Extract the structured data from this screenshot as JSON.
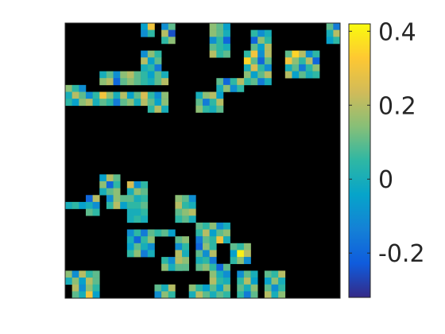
{
  "chart_data": {
    "type": "heatmap",
    "title": "",
    "xlabel": "",
    "ylabel": "",
    "background_value_color": "#000000",
    "colormap": "parula",
    "colorbar": {
      "clim": [
        -0.32,
        0.42
      ],
      "ticks": [
        -0.2,
        0,
        0.2,
        0.4
      ],
      "tick_labels": [
        "-0.2",
        "0",
        "0.2",
        "0.4"
      ]
    },
    "grid_size": [
      40,
      40
    ],
    "blocks": [
      {
        "row": 0,
        "col": 11,
        "h": 2,
        "w": 2,
        "values": [
          -0.05,
          0.3,
          -0.1,
          0.05
        ]
      },
      {
        "row": 0,
        "col": 14,
        "h": 3,
        "w": 2,
        "values": [
          -0.1,
          0.1,
          0.2,
          -0.25,
          0.05,
          0.15
        ]
      },
      {
        "row": 0,
        "col": 21,
        "h": 5,
        "w": 3,
        "values": [
          0.15,
          0.1,
          -0.05,
          0.15,
          0.1,
          0.0,
          -0.1,
          0.05,
          -0.2,
          0.1,
          0.05,
          0.0,
          0.2,
          0.05,
          0.1
        ]
      },
      {
        "row": 1,
        "col": 27,
        "h": 3,
        "w": 3,
        "values": [
          0.05,
          -0.1,
          0.0,
          -0.2,
          0.15,
          0.05,
          0.1,
          -0.05,
          0.2
        ]
      },
      {
        "row": 0,
        "col": 38,
        "h": 3,
        "w": 2,
        "values": [
          0.1,
          -0.15,
          0.0,
          0.2,
          -0.05,
          0.05
        ]
      },
      {
        "row": 4,
        "col": 11,
        "h": 3,
        "w": 3,
        "values": [
          -0.1,
          0.15,
          0.05,
          0.2,
          -0.05,
          0.1,
          0.0,
          0.05,
          -0.15
        ]
      },
      {
        "row": 7,
        "col": 5,
        "h": 2,
        "w": 10,
        "values": [
          0.0,
          0.1,
          -0.1,
          0.15,
          0.2,
          0.1,
          0.05,
          -0.05,
          0.1,
          0.0,
          0.15,
          0.2,
          -0.2,
          0.1,
          0.15,
          0.1,
          0.05,
          0.0,
          0.1,
          0.2
        ]
      },
      {
        "row": 4,
        "col": 26,
        "h": 5,
        "w": 4,
        "values": [
          0.05,
          0.3,
          -0.1,
          0.2,
          0.35,
          0.1,
          -0.2,
          0.1,
          0.0,
          0.25,
          0.05,
          -0.1,
          0.15,
          -0.05,
          0.1,
          0.2,
          0.05,
          0.1,
          -0.15,
          0.0
        ]
      },
      {
        "row": 4,
        "col": 32,
        "h": 4,
        "w": 5,
        "values": [
          0.1,
          0.35,
          0.2,
          -0.1,
          0.05,
          0.3,
          0.15,
          0.05,
          0.2,
          -0.2,
          0.0,
          0.1,
          -0.15,
          0.05,
          0.15,
          0.2,
          -0.05,
          0.1,
          0.0,
          0.05
        ]
      },
      {
        "row": 8,
        "col": 22,
        "h": 2,
        "w": 4,
        "values": [
          0.1,
          -0.2,
          0.05,
          0.2,
          0.0,
          0.15,
          -0.1,
          0.05
        ]
      },
      {
        "row": 9,
        "col": 0,
        "h": 3,
        "w": 3,
        "values": [
          0.15,
          0.05,
          -0.1,
          0.0,
          0.2,
          0.1,
          0.05,
          -0.05,
          0.15
        ]
      },
      {
        "row": 10,
        "col": 3,
        "h": 2,
        "w": 12,
        "values": [
          -0.1,
          0.05,
          0.3,
          0.15,
          0.0,
          0.2,
          -0.05,
          0.1,
          0.25,
          0.05,
          -0.1,
          0.15,
          0.2,
          0.0,
          0.1,
          0.05,
          -0.15,
          0.1,
          0.15,
          0.0,
          0.2,
          0.05,
          0.1,
          -0.05
        ]
      },
      {
        "row": 11,
        "col": 12,
        "h": 2,
        "w": 3,
        "values": [
          0.1,
          -0.05,
          0.15,
          0.05,
          0.2,
          0.0
        ]
      },
      {
        "row": 10,
        "col": 19,
        "h": 3,
        "w": 4,
        "values": [
          0.0,
          0.15,
          0.2,
          -0.05,
          0.1,
          -0.15,
          0.05,
          0.2,
          0.15,
          0.05,
          0.0,
          0.1
        ]
      },
      {
        "row": 22,
        "col": 5,
        "h": 3,
        "w": 3,
        "values": [
          -0.05,
          0.2,
          0.1,
          0.15,
          -0.2,
          0.05,
          0.0,
          0.1,
          0.15
        ]
      },
      {
        "row": 23,
        "col": 9,
        "h": 2,
        "w": 3,
        "values": [
          0.25,
          -0.1,
          0.05,
          0.0,
          0.15,
          0.1
        ]
      },
      {
        "row": 26,
        "col": 0,
        "h": 1,
        "w": 5,
        "values": [
          0.0,
          0.05,
          -0.05,
          0.1,
          0.05
        ]
      },
      {
        "row": 25,
        "col": 3,
        "h": 3,
        "w": 2,
        "values": [
          -0.2,
          0.2,
          0.0,
          -0.1,
          0.1,
          0.05
        ]
      },
      {
        "row": 25,
        "col": 6,
        "h": 2,
        "w": 3,
        "values": [
          -0.1,
          0.15,
          0.1,
          0.05,
          0.2,
          -0.05
        ]
      },
      {
        "row": 25,
        "col": 9,
        "h": 4,
        "w": 3,
        "values": [
          0.1,
          0.0,
          0.05,
          0.05,
          0.05,
          0.1,
          0.0,
          0.0,
          0.05,
          0.0,
          0.05,
          0.0
        ]
      },
      {
        "row": 25,
        "col": 16,
        "h": 4,
        "w": 3,
        "values": [
          0.15,
          0.1,
          -0.1,
          0.2,
          0.05,
          0.0,
          0.1,
          0.15,
          0.2,
          0.05,
          0.1,
          0.0
        ]
      },
      {
        "row": 30,
        "col": 9,
        "h": 4,
        "w": 4,
        "values": [
          -0.1,
          0.05,
          -0.15,
          0.1,
          0.0,
          -0.2,
          0.05,
          0.15,
          -0.05,
          0.1,
          0.0,
          -0.1,
          0.05,
          0.15,
          -0.15,
          0.0
        ]
      },
      {
        "row": 30,
        "col": 13,
        "h": 1,
        "w": 3,
        "values": [
          0.05,
          0.1,
          -0.05
        ]
      },
      {
        "row": 29,
        "col": 19,
        "h": 3,
        "w": 5,
        "values": [
          0.1,
          0.05,
          0.15,
          -0.1,
          0.0,
          0.05,
          0.2,
          -0.05,
          0.1,
          0.15,
          -0.15,
          0.1,
          0.05,
          0.3,
          0.0
        ]
      },
      {
        "row": 31,
        "col": 16,
        "h": 5,
        "w": 2,
        "values": [
          0.1,
          0.15,
          -0.1,
          0.05,
          0.2,
          0.0,
          0.05,
          0.15,
          -0.05,
          0.1
        ]
      },
      {
        "row": 32,
        "col": 19,
        "h": 4,
        "w": 3,
        "values": [
          -0.2,
          0.15,
          0.05,
          0.1,
          -0.1,
          0.2,
          0.0,
          0.05,
          -0.15,
          0.1,
          0.15,
          0.0
        ]
      },
      {
        "row": 32,
        "col": 24,
        "h": 3,
        "w": 3,
        "values": [
          0.1,
          0.05,
          0.15,
          -0.05,
          0.4,
          0.2,
          0.05,
          0.15,
          -0.1
        ]
      },
      {
        "row": 34,
        "col": 14,
        "h": 2,
        "w": 3,
        "values": [
          0.05,
          -0.1,
          0.2,
          0.15,
          0.0,
          0.1
        ]
      },
      {
        "row": 36,
        "col": 0,
        "h": 2,
        "w": 5,
        "values": [
          0.15,
          -0.1,
          0.2,
          0.05,
          0.1,
          0.0,
          0.15,
          -0.05,
          0.2,
          0.1
        ]
      },
      {
        "row": 38,
        "col": 1,
        "h": 2,
        "w": 4,
        "values": [
          0.2,
          -0.1,
          0.15,
          0.05,
          0.1,
          0.0,
          0.3,
          -0.05
        ]
      },
      {
        "row": 38,
        "col": 13,
        "h": 2,
        "w": 3,
        "values": [
          0.1,
          0.0,
          0.2,
          -0.1,
          0.15,
          0.05
        ]
      },
      {
        "row": 35,
        "col": 21,
        "h": 5,
        "w": 3,
        "values": [
          0.05,
          -0.2,
          0.1,
          0.15,
          0.0,
          -0.1,
          0.2,
          0.05,
          0.0,
          0.1,
          -0.05,
          0.15,
          0.0,
          0.1,
          0.05
        ]
      },
      {
        "row": 36,
        "col": 25,
        "h": 4,
        "w": 3,
        "values": [
          -0.1,
          0.1,
          0.0,
          0.05,
          0.2,
          -0.05,
          0.1,
          0.0,
          0.15,
          0.05,
          -0.15,
          0.1
        ]
      },
      {
        "row": 36,
        "col": 29,
        "h": 4,
        "w": 3,
        "values": [
          0.1,
          0.05,
          0.2,
          -0.05,
          0.15,
          0.0,
          0.1,
          -0.1,
          0.05,
          0.2,
          0.0,
          0.15
        ]
      },
      {
        "row": 38,
        "col": 18,
        "h": 2,
        "w": 3,
        "values": [
          0.15,
          0.05,
          -0.05,
          0.0,
          0.2,
          0.1
        ]
      }
    ]
  }
}
